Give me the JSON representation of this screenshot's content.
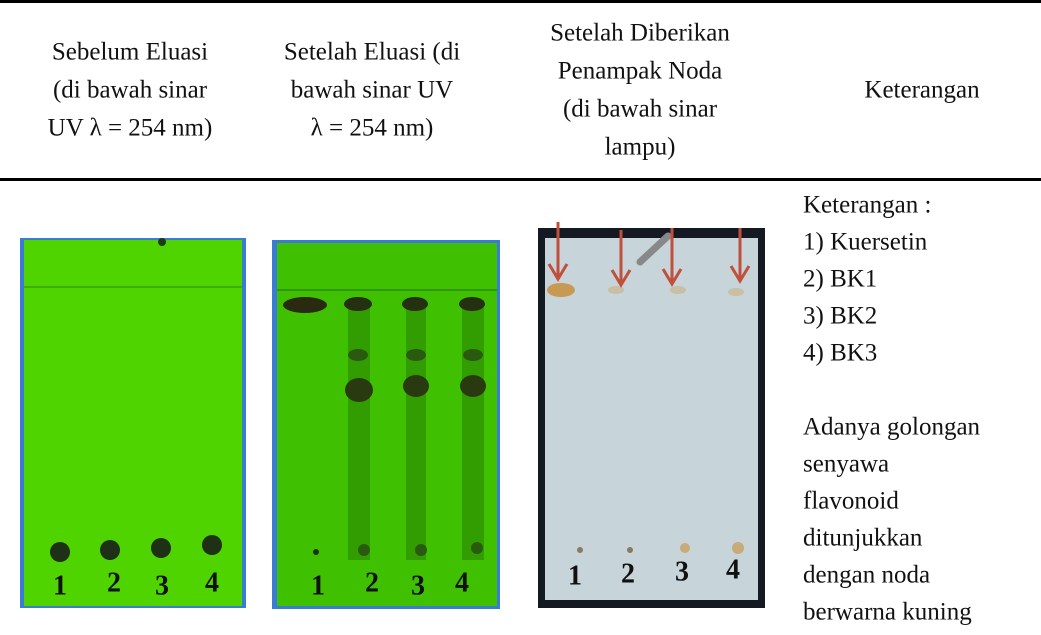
{
  "table": {
    "headers": [
      [
        "Sebelum Eluasi",
        "(di bawah sinar",
        "UV λ = 254 nm)"
      ],
      [
        "Setelah Eluasi (di",
        "bawah sinar UV",
        "λ = 254 nm)"
      ],
      [
        "Setelah Diberikan",
        "Penampak Noda",
        "(di bawah sinar",
        "lampu)"
      ],
      [
        "Keterangan"
      ]
    ],
    "plates": [
      {
        "lanes": [
          "1",
          "2",
          "3",
          "4"
        ]
      },
      {
        "lanes": [
          "1",
          "2",
          "3",
          "4"
        ]
      },
      {
        "lanes": [
          "1",
          "2",
          "3",
          "4"
        ]
      }
    ],
    "notes": {
      "legend": [
        "Keterangan :",
        "1) Kuersetin",
        "2) BK1",
        "3) BK2",
        "4) BK3"
      ],
      "description": [
        "Adanya golongan",
        "senyawa",
        "flavonoid",
        "ditunjukkan",
        "dengan noda",
        "berwarna kuning"
      ]
    }
  }
}
